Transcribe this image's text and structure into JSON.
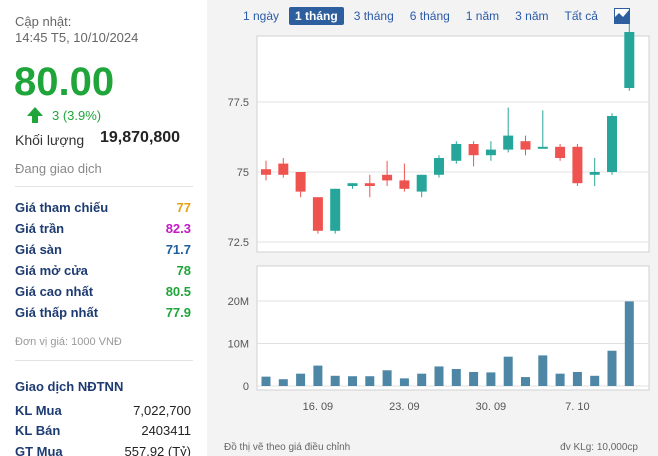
{
  "summary": {
    "updated_label": "Cập nhật:",
    "updated_time": "14:45 T5, 10/10/2024",
    "price": "80.00",
    "change": "3 (3.9%)",
    "volume_label": "Khối lượng",
    "volume_value": "19,870,800",
    "status": "Đang giao dịch"
  },
  "prices": [
    {
      "label": "Giá tham chiếu",
      "value": "77",
      "color": "#e6a117"
    },
    {
      "label": "Giá trần",
      "value": "82.3",
      "color": "#c21bc2"
    },
    {
      "label": "Giá sàn",
      "value": "71.7",
      "color": "#1d5f9e"
    },
    {
      "label": "Giá mở cửa",
      "value": "78",
      "color": "#1fa53a"
    },
    {
      "label": "Giá cao nhất",
      "value": "80.5",
      "color": "#1fa53a"
    },
    {
      "label": "Giá thấp nhất",
      "value": "77.9",
      "color": "#1fa53a"
    }
  ],
  "unit_note": "Đơn vị giá: 1000 VNĐ",
  "foreign": {
    "title": "Giao dịch NĐTNN",
    "rows": [
      {
        "label": "KL Mua",
        "value": "7,022,700"
      },
      {
        "label": "KL Bán",
        "value": "2403411"
      },
      {
        "label": "GT Mua",
        "value": "557.92 (Tỷ)"
      }
    ]
  },
  "tabs": [
    {
      "label": "1 ngày",
      "active": false
    },
    {
      "label": "1 tháng",
      "active": true
    },
    {
      "label": "3 tháng",
      "active": false
    },
    {
      "label": "6 tháng",
      "active": false
    },
    {
      "label": "1 năm",
      "active": false
    },
    {
      "label": "3 năm",
      "active": false
    },
    {
      "label": "Tất cả",
      "active": false
    }
  ],
  "chart_icon": "area-chart-icon",
  "footer_left": "Đồ thị vẽ theo giá điều chỉnh",
  "footer_right": "đv KLg: 10,000cp",
  "colors": {
    "up": "#26a69a",
    "down": "#ef5350",
    "volume": "#4e86a6",
    "grid": "#e0e0e0"
  },
  "chart_data": {
    "type": "candlestick",
    "price_ticks": [
      "77.5",
      "75",
      "72.5"
    ],
    "price_tick_values": [
      77.5,
      75,
      72.5
    ],
    "price_range": [
      71.7,
      80.5
    ],
    "volume_ticks": [
      "20M",
      "10M",
      "0"
    ],
    "volume_tick_values": [
      20,
      10,
      0
    ],
    "volume_range": [
      0,
      21
    ],
    "volume_unit": "M",
    "date_labels": [
      {
        "label": "16. 09",
        "index": 3
      },
      {
        "label": "23. 09",
        "index": 8
      },
      {
        "label": "30. 09",
        "index": 13
      },
      {
        "label": "7. 10",
        "index": 18
      }
    ],
    "candles": [
      {
        "open": 75.1,
        "close": 74.9,
        "high": 75.4,
        "low": 74.7,
        "volume": 2.2
      },
      {
        "open": 75.3,
        "close": 74.9,
        "high": 75.5,
        "low": 74.8,
        "volume": 1.6
      },
      {
        "open": 75.0,
        "close": 74.3,
        "high": 75.0,
        "low": 74.1,
        "volume": 2.9
      },
      {
        "open": 74.1,
        "close": 72.9,
        "high": 74.1,
        "low": 72.8,
        "volume": 4.8
      },
      {
        "open": 72.9,
        "close": 74.4,
        "high": 74.4,
        "low": 72.8,
        "volume": 2.4
      },
      {
        "open": 74.5,
        "close": 74.6,
        "high": 74.6,
        "low": 74.4,
        "volume": 2.3
      },
      {
        "open": 74.6,
        "close": 74.5,
        "high": 74.9,
        "low": 74.1,
        "volume": 2.3
      },
      {
        "open": 74.9,
        "close": 74.7,
        "high": 75.4,
        "low": 74.5,
        "volume": 3.7
      },
      {
        "open": 74.7,
        "close": 74.4,
        "high": 75.3,
        "low": 74.3,
        "volume": 1.8
      },
      {
        "open": 74.3,
        "close": 74.9,
        "high": 74.9,
        "low": 74.1,
        "volume": 2.9
      },
      {
        "open": 74.9,
        "close": 75.5,
        "high": 75.6,
        "low": 74.8,
        "volume": 4.6
      },
      {
        "open": 75.4,
        "close": 76.0,
        "high": 76.1,
        "low": 75.3,
        "volume": 4.0
      },
      {
        "open": 76.0,
        "close": 75.6,
        "high": 76.1,
        "low": 75.2,
        "volume": 3.3
      },
      {
        "open": 75.6,
        "close": 75.8,
        "high": 76.1,
        "low": 75.4,
        "volume": 3.2
      },
      {
        "open": 75.8,
        "close": 76.3,
        "high": 77.3,
        "low": 75.7,
        "volume": 6.9
      },
      {
        "open": 76.1,
        "close": 75.8,
        "high": 76.3,
        "low": 75.6,
        "volume": 2.1
      },
      {
        "open": 75.9,
        "close": 75.9,
        "high": 77.2,
        "low": 75.9,
        "volume": 7.2
      },
      {
        "open": 75.9,
        "close": 75.5,
        "high": 76.0,
        "low": 75.4,
        "volume": 2.9
      },
      {
        "open": 75.9,
        "close": 74.6,
        "high": 76.0,
        "low": 74.5,
        "volume": 3.3
      },
      {
        "open": 74.9,
        "close": 75.0,
        "high": 75.5,
        "low": 74.5,
        "volume": 2.4
      },
      {
        "open": 75.0,
        "close": 77.0,
        "high": 77.1,
        "low": 74.9,
        "volume": 8.3
      },
      {
        "open": 78.0,
        "close": 80.0,
        "high": 80.5,
        "low": 77.9,
        "volume": 19.9
      }
    ]
  }
}
